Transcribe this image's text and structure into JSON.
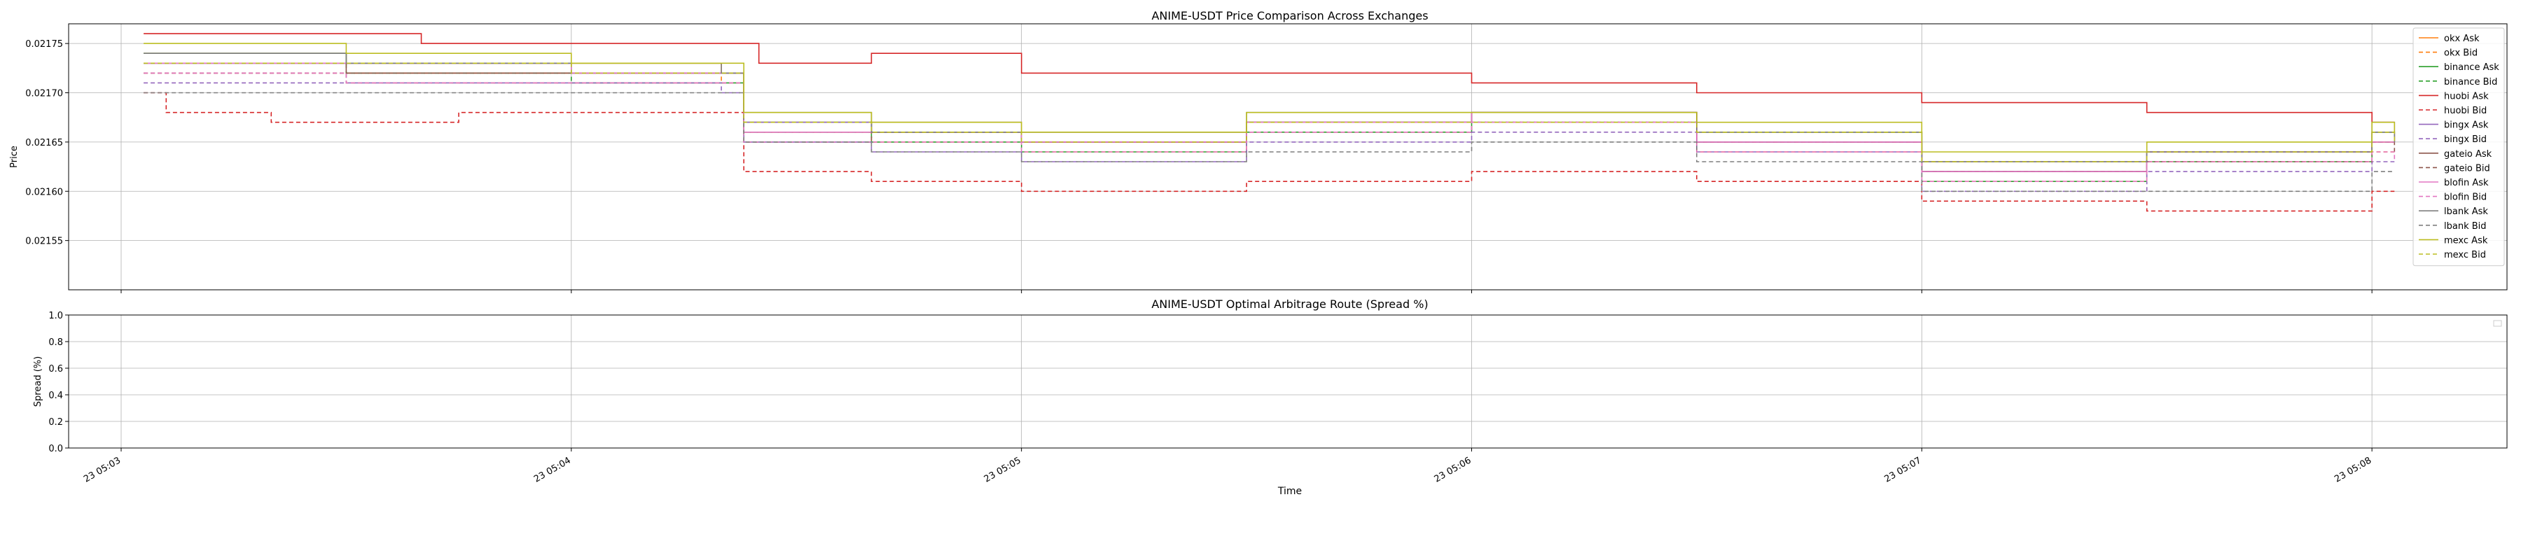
{
  "chart_data": [
    {
      "type": "line",
      "title": "ANIME-USDT Price Comparison Across Exchanges",
      "ylabel": "Price",
      "xlabel": "",
      "ylim": [
        0.0215,
        0.02177
      ],
      "yticks": [
        0.02155,
        0.0216,
        0.02165,
        0.0217,
        0.02175
      ],
      "ytick_labels": [
        "0.02155",
        "0.02160",
        "0.02165",
        "0.02170",
        "0.02175"
      ],
      "xlim": [
        "2024-01-23 05:02:53",
        "2024-01-23 05:08:18"
      ],
      "xticks": [
        "2024-01-23 05:03:00",
        "2024-01-23 05:04:00",
        "2024-01-23 05:05:00",
        "2024-01-23 05:06:00",
        "2024-01-23 05:07:00",
        "2024-01-23 05:08:00"
      ],
      "grid": true,
      "legend_position": "right",
      "series": [
        {
          "name": "okx Ask",
          "color": "#ff7f0e",
          "dashed": false,
          "x": [
            "05:03:03",
            "05:03:30",
            "05:04:00",
            "05:04:20",
            "05:04:23",
            "05:04:40",
            "05:05:00",
            "05:05:30",
            "05:06:00",
            "05:06:30",
            "05:07:00",
            "05:07:30",
            "05:08:00",
            "05:08:03"
          ],
          "y": [
            0.02174,
            0.02173,
            0.02173,
            0.02172,
            0.02167,
            0.02166,
            0.02165,
            0.02167,
            0.02168,
            0.02165,
            0.02162,
            0.02164,
            0.02165,
            0.02165
          ]
        },
        {
          "name": "okx Bid",
          "color": "#ff7f0e",
          "dashed": true,
          "x": [
            "05:03:03",
            "05:03:30",
            "05:04:00",
            "05:04:20",
            "05:04:23",
            "05:04:40",
            "05:05:00",
            "05:05:30",
            "05:06:00",
            "05:06:30",
            "05:07:00",
            "05:07:30",
            "05:08:00",
            "05:08:03"
          ],
          "y": [
            0.02172,
            0.02172,
            0.02172,
            0.02171,
            0.02166,
            0.02165,
            0.02164,
            0.02166,
            0.02167,
            0.02164,
            0.02161,
            0.02163,
            0.02164,
            0.02164
          ]
        },
        {
          "name": "binance Ask",
          "color": "#2ca02c",
          "dashed": false,
          "x": [
            "05:03:03",
            "05:03:30",
            "05:04:00",
            "05:04:20",
            "05:04:23",
            "05:04:40",
            "05:05:00",
            "05:05:30",
            "05:06:00",
            "05:06:30",
            "05:07:00",
            "05:07:30",
            "05:08:00",
            "05:08:03"
          ],
          "y": [
            0.02174,
            0.02173,
            0.02172,
            0.02172,
            0.02167,
            0.02166,
            0.02165,
            0.02167,
            0.02168,
            0.02166,
            0.02162,
            0.02164,
            0.02166,
            0.02166
          ]
        },
        {
          "name": "binance Bid",
          "color": "#2ca02c",
          "dashed": true,
          "x": [
            "05:03:03",
            "05:03:30",
            "05:04:00",
            "05:04:20",
            "05:04:23",
            "05:04:40",
            "05:05:00",
            "05:05:30",
            "05:06:00",
            "05:06:30",
            "05:07:00",
            "05:07:30",
            "05:08:00",
            "05:08:03"
          ],
          "y": [
            0.02173,
            0.02172,
            0.02171,
            0.02171,
            0.02166,
            0.02165,
            0.02164,
            0.02166,
            0.02167,
            0.02165,
            0.02161,
            0.02163,
            0.02165,
            0.02165
          ]
        },
        {
          "name": "huobi Ask",
          "color": "#d62728",
          "dashed": false,
          "x": [
            "05:03:03",
            "05:03:20",
            "05:03:40",
            "05:04:00",
            "05:04:25",
            "05:04:40",
            "05:05:00",
            "05:05:10",
            "05:05:30",
            "05:06:00",
            "05:06:30",
            "05:07:00",
            "05:07:30",
            "05:08:00",
            "05:08:03"
          ],
          "y": [
            0.02176,
            0.02176,
            0.02175,
            0.02175,
            0.02173,
            0.02174,
            0.02172,
            0.02172,
            0.02172,
            0.02171,
            0.0217,
            0.02169,
            0.02168,
            0.02167,
            0.02167
          ]
        },
        {
          "name": "huobi Bid",
          "color": "#d62728",
          "dashed": true,
          "x": [
            "05:03:03",
            "05:03:06",
            "05:03:20",
            "05:03:45",
            "05:04:00",
            "05:04:20",
            "05:04:23",
            "05:04:40",
            "05:05:00",
            "05:05:30",
            "05:06:00",
            "05:06:30",
            "05:07:00",
            "05:07:30",
            "05:08:00",
            "05:08:03"
          ],
          "y": [
            0.0217,
            0.02168,
            0.02167,
            0.02168,
            0.02168,
            0.02168,
            0.02162,
            0.02161,
            0.0216,
            0.02161,
            0.02162,
            0.02161,
            0.02159,
            0.02158,
            0.0216,
            0.0216
          ]
        },
        {
          "name": "bingx Ask",
          "color": "#9467bd",
          "dashed": false,
          "x": [
            "05:03:03",
            "05:03:30",
            "05:04:00",
            "05:04:20",
            "05:04:23",
            "05:04:40",
            "05:05:00",
            "05:05:30",
            "05:06:00",
            "05:06:30",
            "05:07:00",
            "05:07:30",
            "05:08:00",
            "05:08:03"
          ],
          "y": [
            0.02173,
            0.02173,
            0.02172,
            0.02172,
            0.02167,
            0.02166,
            0.02165,
            0.02167,
            0.02168,
            0.02165,
            0.02162,
            0.02164,
            0.02167,
            0.02165
          ]
        },
        {
          "name": "bingx Bid",
          "color": "#9467bd",
          "dashed": true,
          "x": [
            "05:03:03",
            "05:03:30",
            "05:04:00",
            "05:04:20",
            "05:04:23",
            "05:04:40",
            "05:05:00",
            "05:05:30",
            "05:06:00",
            "05:06:30",
            "05:07:00",
            "05:07:30",
            "05:08:00",
            "05:08:03"
          ],
          "y": [
            0.02171,
            0.02171,
            0.02171,
            0.0217,
            0.02165,
            0.02164,
            0.02163,
            0.02165,
            0.02166,
            0.02164,
            0.0216,
            0.02162,
            0.02163,
            0.02163
          ]
        },
        {
          "name": "gateio Ask",
          "color": "#8c564b",
          "dashed": false,
          "x": [
            "05:03:03",
            "05:03:30",
            "05:04:00",
            "05:04:20",
            "05:04:23",
            "05:04:40",
            "05:05:00",
            "05:05:30",
            "05:06:00",
            "05:06:30",
            "05:07:00",
            "05:07:30",
            "05:08:00",
            "05:08:03"
          ],
          "y": [
            0.02173,
            0.02172,
            0.02172,
            0.02172,
            0.02166,
            0.02167,
            0.02166,
            0.02167,
            0.02168,
            0.02166,
            0.02163,
            0.02164,
            0.02166,
            0.02165
          ]
        },
        {
          "name": "gateio Bid",
          "color": "#8c564b",
          "dashed": true,
          "x": [
            "05:03:03",
            "05:03:30",
            "05:04:00",
            "05:04:20",
            "05:04:23",
            "05:04:40",
            "05:05:00",
            "05:05:30",
            "05:06:00",
            "05:06:30",
            "05:07:00",
            "05:07:30",
            "05:08:00",
            "05:08:03"
          ],
          "y": [
            0.02172,
            0.02171,
            0.02171,
            0.02171,
            0.02165,
            0.02166,
            0.02165,
            0.02166,
            0.02167,
            0.02165,
            0.02162,
            0.02163,
            0.02165,
            0.02164
          ]
        },
        {
          "name": "blofin Ask",
          "color": "#e377c2",
          "dashed": false,
          "x": [
            "05:03:03",
            "05:03:30",
            "05:04:00",
            "05:04:20",
            "05:04:23",
            "05:04:40",
            "05:05:00",
            "05:05:30",
            "05:06:00",
            "05:06:30",
            "05:07:00",
            "05:07:30",
            "05:08:00",
            "05:08:03"
          ],
          "y": [
            0.02173,
            0.02173,
            0.02172,
            0.02172,
            0.02166,
            0.02166,
            0.02165,
            0.02167,
            0.02168,
            0.02165,
            0.02162,
            0.02164,
            0.02165,
            0.02165
          ]
        },
        {
          "name": "blofin Bid",
          "color": "#e377c2",
          "dashed": true,
          "x": [
            "05:03:03",
            "05:03:30",
            "05:04:00",
            "05:04:20",
            "05:04:23",
            "05:04:40",
            "05:05:00",
            "05:05:30",
            "05:06:00",
            "05:06:30",
            "05:07:00",
            "05:07:30",
            "05:08:00",
            "05:08:03"
          ],
          "y": [
            0.02172,
            0.02171,
            0.02171,
            0.02171,
            0.02165,
            0.02165,
            0.02164,
            0.02166,
            0.02167,
            0.02164,
            0.02161,
            0.02163,
            0.02164,
            0.02163
          ]
        },
        {
          "name": "lbank Ask",
          "color": "#7f7f7f",
          "dashed": false,
          "x": [
            "05:03:03",
            "05:03:30",
            "05:04:00",
            "05:04:20",
            "05:04:23",
            "05:04:40",
            "05:05:00",
            "05:05:30",
            "05:06:00",
            "05:06:30",
            "05:07:00",
            "05:07:30",
            "05:08:00",
            "05:08:03"
          ],
          "y": [
            0.02174,
            0.02173,
            0.02173,
            0.02172,
            0.02168,
            0.02166,
            0.02166,
            0.02168,
            0.02168,
            0.02166,
            0.02163,
            0.02164,
            0.02166,
            0.02165
          ]
        },
        {
          "name": "lbank Bid",
          "color": "#7f7f7f",
          "dashed": true,
          "x": [
            "05:03:03",
            "05:03:30",
            "05:04:00",
            "05:04:20",
            "05:04:23",
            "05:04:40",
            "05:05:00",
            "05:05:30",
            "05:06:00",
            "05:06:30",
            "05:07:00",
            "05:07:30",
            "05:08:00",
            "05:08:03"
          ],
          "y": [
            0.0217,
            0.0217,
            0.0217,
            0.0217,
            0.02165,
            0.02164,
            0.02163,
            0.02164,
            0.02165,
            0.02163,
            0.0216,
            0.0216,
            0.02162,
            0.02162
          ]
        },
        {
          "name": "mexc Ask",
          "color": "#bcbd22",
          "dashed": false,
          "x": [
            "05:03:03",
            "05:03:30",
            "05:04:00",
            "05:04:20",
            "05:04:23",
            "05:04:40",
            "05:05:00",
            "05:05:30",
            "05:06:00",
            "05:06:30",
            "05:07:00",
            "05:07:30",
            "05:08:00",
            "05:08:03"
          ],
          "y": [
            0.02175,
            0.02174,
            0.02173,
            0.02173,
            0.02168,
            0.02167,
            0.02166,
            0.02168,
            0.02168,
            0.02167,
            0.02164,
            0.02165,
            0.02167,
            0.02166
          ]
        },
        {
          "name": "mexc Bid",
          "color": "#bcbd22",
          "dashed": true,
          "x": [
            "05:03:03",
            "05:03:30",
            "05:04:00",
            "05:04:20",
            "05:04:23",
            "05:04:40",
            "05:05:00",
            "05:05:30",
            "05:06:00",
            "05:06:30",
            "05:07:00",
            "05:07:30",
            "05:08:00",
            "05:08:03"
          ],
          "y": [
            0.02173,
            0.02173,
            0.02172,
            0.02172,
            0.02167,
            0.02166,
            0.02165,
            0.02167,
            0.02167,
            0.02166,
            0.02163,
            0.02164,
            0.02166,
            0.02165
          ]
        }
      ]
    },
    {
      "type": "line",
      "title": "ANIME-USDT Optimal Arbitrage Route (Spread %)",
      "xlabel": "Time",
      "ylabel": "Spread (%)",
      "ylim": [
        0.0,
        1.0
      ],
      "yticks": [
        0.0,
        0.2,
        0.4,
        0.6,
        0.8,
        1.0
      ],
      "ytick_labels": [
        "0.0",
        "0.2",
        "0.4",
        "0.6",
        "0.8",
        "1.0"
      ],
      "xlim": [
        "2024-01-23 05:02:53",
        "2024-01-23 05:08:18"
      ],
      "xticks": [
        "2024-01-23 05:03:00",
        "2024-01-23 05:04:00",
        "2024-01-23 05:05:00",
        "2024-01-23 05:06:00",
        "2024-01-23 05:07:00",
        "2024-01-23 05:08:00"
      ],
      "xtick_labels": [
        "23 05:03",
        "23 05:04",
        "23 05:05",
        "23 05:06",
        "23 05:07",
        "23 05:08"
      ],
      "grid": true,
      "legend_position": "top-right",
      "series": []
    }
  ]
}
